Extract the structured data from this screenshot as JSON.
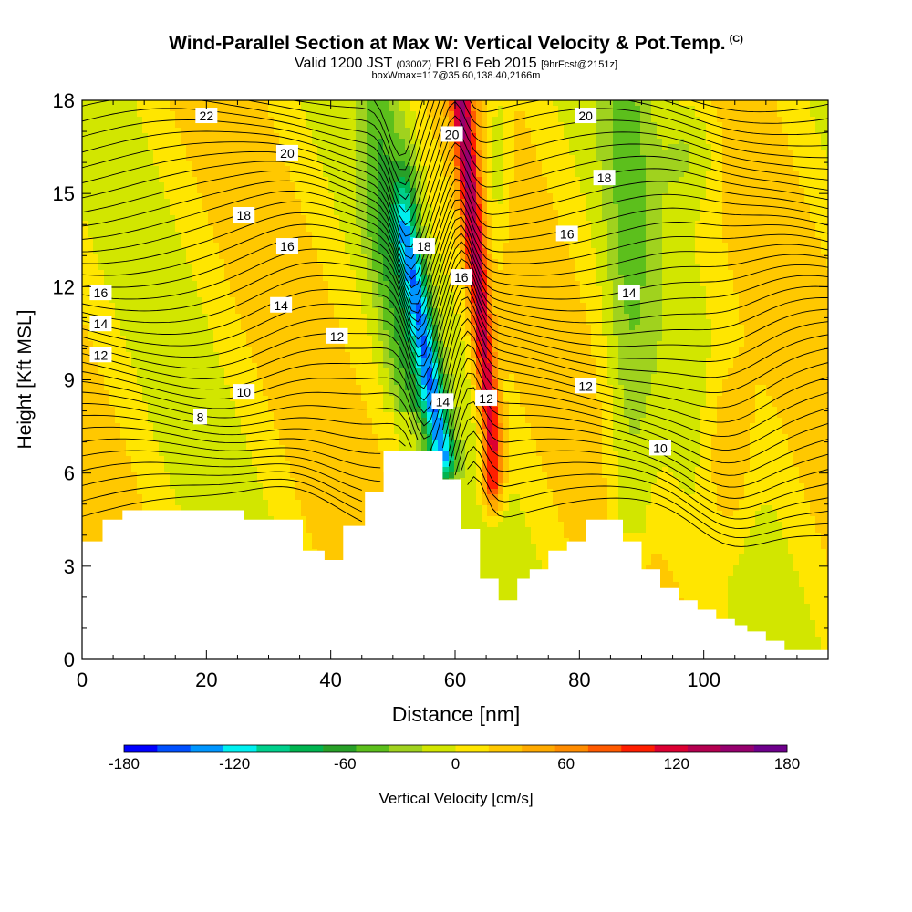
{
  "title": {
    "main": "Wind-Parallel Section at Max W: Vertical Velocity & Pot.Temp.",
    "copyright": "(C)",
    "valid_prefix": "Valid 1200 JST",
    "valid_utc": "(0300Z)",
    "valid_date": "FRI 6 Feb 2015",
    "forecast": "[9hrFcst@2151z]",
    "box": "boxWmax=117@35.60,138.40,2166m"
  },
  "colors": {
    "palette": [
      "#0000ff",
      "#0050ff",
      "#0096ff",
      "#00f0f0",
      "#00d08c",
      "#00b450",
      "#28a028",
      "#5cbf1c",
      "#a0d21e",
      "#d2e600",
      "#ffe600",
      "#ffc800",
      "#ffaa00",
      "#ff8c00",
      "#ff5a00",
      "#ff1e00",
      "#dc0032",
      "#b40050",
      "#96006e",
      "#6e008c"
    ],
    "terrain": "#ffffff",
    "contour": "#000000"
  },
  "chart_data": {
    "type": "contour-section",
    "xlabel": "Distance [nm]",
    "ylabel": "Height [Kft MSL]",
    "xlim": [
      0,
      120
    ],
    "ylim": [
      0,
      18
    ],
    "xticks": [
      0,
      20,
      40,
      60,
      80,
      100
    ],
    "yticks": [
      0,
      3,
      6,
      9,
      12,
      15,
      18
    ],
    "colorbar": {
      "label": "Vertical Velocity [cm/s]",
      "min": -180,
      "max": 180,
      "step": 18,
      "tick_values": [
        -180,
        -120,
        -60,
        0,
        60,
        120,
        180
      ]
    },
    "terrain_height_kft": [
      [
        0,
        3.8
      ],
      [
        3.3,
        4.5
      ],
      [
        6.5,
        4.8
      ],
      [
        26,
        4.5
      ],
      [
        35.5,
        3.5
      ],
      [
        39,
        3.2
      ],
      [
        42,
        4.3
      ],
      [
        45.5,
        5.4
      ],
      [
        48.5,
        6.7
      ],
      [
        58,
        5.8
      ],
      [
        61,
        4.2
      ],
      [
        64,
        2.6
      ],
      [
        67,
        1.9
      ],
      [
        70,
        2.6
      ],
      [
        72,
        2.9
      ],
      [
        75,
        3.5
      ],
      [
        78,
        3.8
      ],
      [
        81,
        4.5
      ],
      [
        87,
        3.8
      ],
      [
        90,
        2.9
      ],
      [
        93,
        2.3
      ],
      [
        96,
        1.9
      ],
      [
        99,
        1.6
      ],
      [
        102,
        1.3
      ],
      [
        105,
        1.1
      ],
      [
        107,
        0.9
      ],
      [
        110,
        0.6
      ],
      [
        113,
        0.3
      ],
      [
        120,
        0.3
      ]
    ],
    "updraft_core": {
      "x_nm": [
        66,
        61
      ],
      "z_kft": [
        7,
        18
      ],
      "max_cms": 120
    },
    "downdraft_core": {
      "x_nm": [
        58,
        52
      ],
      "z_kft": [
        6.5,
        14
      ],
      "min_cms": -140
    },
    "lee_updraft": {
      "x_nm": 104,
      "z_kft": [
        4,
        9
      ],
      "max_cms": 60
    },
    "theta_contour_labels": [
      {
        "value": "22",
        "x": 20,
        "z": 17.5
      },
      {
        "value": "20",
        "x": 33,
        "z": 16.3
      },
      {
        "value": "20",
        "x": 59.5,
        "z": 16.9
      },
      {
        "value": "20",
        "x": 81,
        "z": 17.5
      },
      {
        "value": "18",
        "x": 26,
        "z": 14.3
      },
      {
        "value": "18",
        "x": 55,
        "z": 13.3
      },
      {
        "value": "18",
        "x": 84,
        "z": 15.5
      },
      {
        "value": "16",
        "x": 33,
        "z": 13.3
      },
      {
        "value": "16",
        "x": 61,
        "z": 12.3
      },
      {
        "value": "16",
        "x": 78,
        "z": 13.7
      },
      {
        "value": "16",
        "x": 3,
        "z": 11.8
      },
      {
        "value": "14",
        "x": 32,
        "z": 11.4
      },
      {
        "value": "14",
        "x": 88,
        "z": 11.8
      },
      {
        "value": "14",
        "x": 3,
        "z": 10.8
      },
      {
        "value": "14",
        "x": 58,
        "z": 8.3
      },
      {
        "value": "12",
        "x": 41,
        "z": 10.4
      },
      {
        "value": "12",
        "x": 3,
        "z": 9.8
      },
      {
        "value": "12",
        "x": 65,
        "z": 8.4
      },
      {
        "value": "12",
        "x": 81,
        "z": 8.8
      },
      {
        "value": "10",
        "x": 26,
        "z": 8.6
      },
      {
        "value": "10",
        "x": 93,
        "z": 6.8
      },
      {
        "value": "8",
        "x": 19,
        "z": 7.8
      }
    ]
  }
}
